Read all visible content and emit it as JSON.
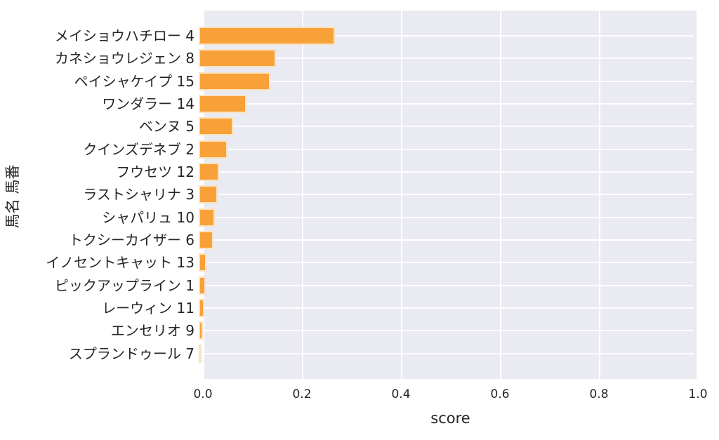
{
  "chart_data": {
    "type": "bar",
    "orientation": "horizontal",
    "title": "",
    "xlabel": "score",
    "ylabel": "馬名 馬番",
    "xlim": [
      0.0,
      1.0
    ],
    "xticks": [
      "0.0",
      "0.2",
      "0.4",
      "0.6",
      "0.8",
      "1.0"
    ],
    "grid": true,
    "legend": false,
    "plot_background": "#EAEAF2",
    "grid_color": "#FFFFFF",
    "bar_color": "#F8A139",
    "bar_edge_color": "#FAE2BE",
    "text_color": "#262626",
    "categories": [
      "メイショウハチロー 4",
      "カネショウレジェン 8",
      "ペイシャケイプ 15",
      "ワンダラー 14",
      "ベンヌ 5",
      "クインズデネブ 2",
      "フウセツ 12",
      "ラストシャリナ 3",
      "シャパリュ 10",
      "トクシーカイザー 6",
      "イノセントキャット 13",
      "ピックアップライン 1",
      "レーウィン 11",
      "エンセリオ 9",
      "スプランドゥール 7"
    ],
    "values": [
      0.275,
      0.156,
      0.145,
      0.097,
      0.07,
      0.058,
      0.041,
      0.038,
      0.033,
      0.03,
      0.016,
      0.014,
      0.012,
      0.008,
      0.003
    ]
  }
}
